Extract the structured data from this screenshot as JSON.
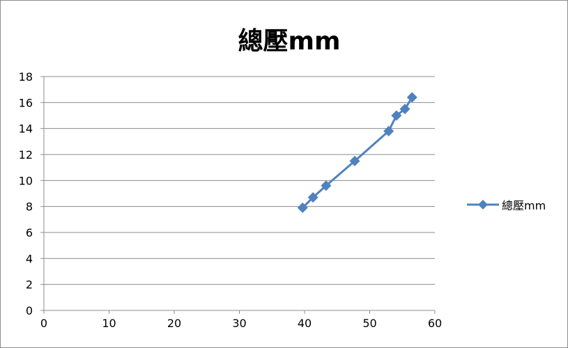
{
  "chart_data": {
    "type": "scatter",
    "title": "總壓mm",
    "xlabel": "",
    "ylabel": "",
    "xlim": [
      0,
      60
    ],
    "ylim": [
      0,
      18
    ],
    "xticks": [
      0,
      10,
      20,
      30,
      40,
      50,
      60
    ],
    "yticks": [
      0,
      2,
      4,
      6,
      8,
      10,
      12,
      14,
      16,
      18
    ],
    "grid": "horizontal",
    "legend_position": "right",
    "series": [
      {
        "name": "總壓mm",
        "color": "#4f81bd",
        "marker": "diamond",
        "line": true,
        "points": [
          {
            "x": 39.7,
            "y": 7.9
          },
          {
            "x": 41.3,
            "y": 8.7
          },
          {
            "x": 43.3,
            "y": 9.6
          },
          {
            "x": 47.7,
            "y": 11.5
          },
          {
            "x": 52.9,
            "y": 13.8
          },
          {
            "x": 54.1,
            "y": 15.0
          },
          {
            "x": 55.4,
            "y": 15.5
          },
          {
            "x": 56.5,
            "y": 16.4
          }
        ]
      }
    ]
  }
}
